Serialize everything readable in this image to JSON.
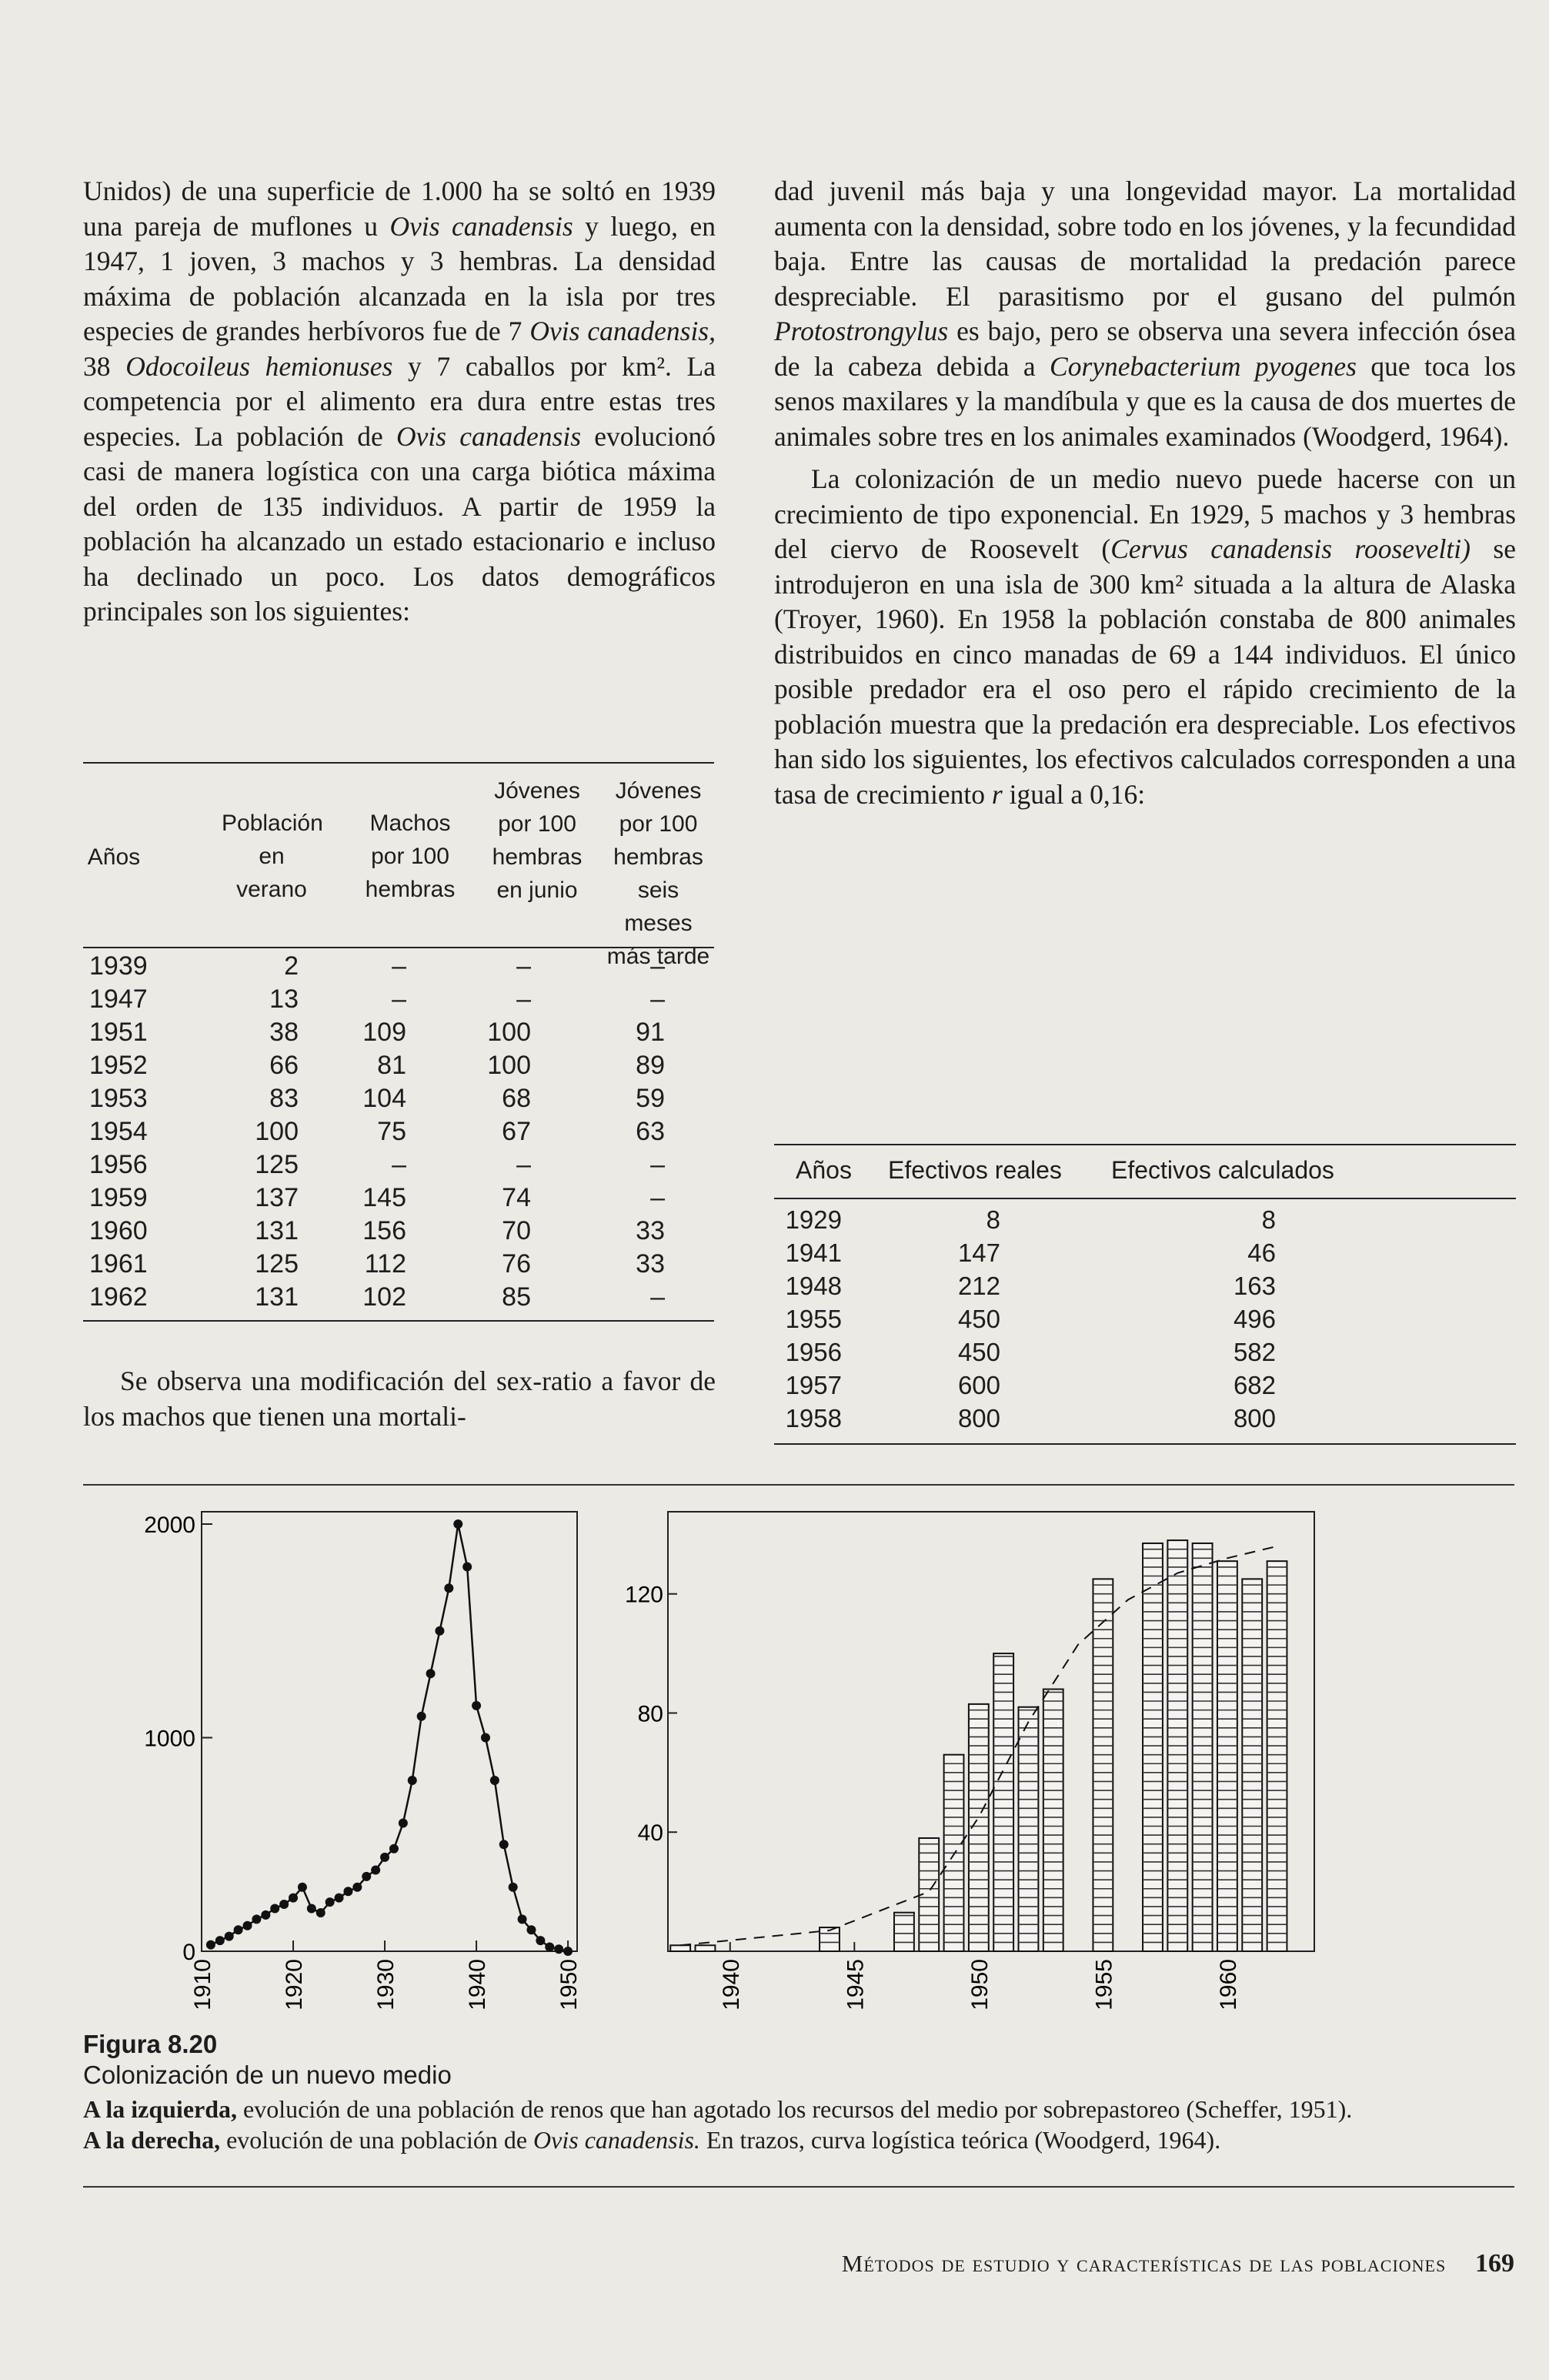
{
  "left_column": [
    {
      "segments": [
        {
          "t": "Unidos) de una superficie de 1.000 ha se soltó en 1939 una pareja de muflones u "
        },
        {
          "t": "Ovis canadensis",
          "i": true
        },
        {
          "t": " y luego, en 1947, 1 joven, 3 machos y 3 hembras. La densidad máxima de población alcanzada en la isla por tres especies de grandes herbívoros fue de 7 "
        },
        {
          "t": "Ovis canadensis,",
          "i": true
        },
        {
          "t": " 38 "
        },
        {
          "t": "Odocoileus hemionuses",
          "i": true
        },
        {
          "t": " y 7 caballos por km²."
        },
        {
          "t": " La competencia por el alimento era dura entre estas tres especies. La población de "
        },
        {
          "t": "Ovis canadensis",
          "i": true
        },
        {
          "t": " evolucionó casi de manera logística con una carga biótica máxima del orden de 135 individuos. A partir de 1959 la población ha alcanzado un estado estacionario e incluso ha declinado un poco. Los datos demográficos principales son los siguientes:"
        }
      ]
    }
  ],
  "table1": {
    "headers": [
      "Años",
      "Población en verano",
      "Machos por 100 hembras",
      "Jóvenes por 100 hembras en junio",
      "Jóvenes por 100 hembras seis meses más tarde"
    ],
    "rows": [
      [
        "1939",
        "2",
        "–",
        "–",
        "–"
      ],
      [
        "1947",
        "13",
        "–",
        "–",
        "–"
      ],
      [
        "1951",
        "38",
        "109",
        "100",
        "91"
      ],
      [
        "1952",
        "66",
        "81",
        "100",
        "89"
      ],
      [
        "1953",
        "83",
        "104",
        "68",
        "59"
      ],
      [
        "1954",
        "100",
        "75",
        "67",
        "63"
      ],
      [
        "1956",
        "125",
        "–",
        "–",
        "–"
      ],
      [
        "1959",
        "137",
        "145",
        "74",
        "–"
      ],
      [
        "1960",
        "131",
        "156",
        "70",
        "33"
      ],
      [
        "1961",
        "125",
        "112",
        "76",
        "33"
      ],
      [
        "1962",
        "131",
        "102",
        "85",
        "–"
      ]
    ]
  },
  "left_after_table": "Se observa una modificación del sex-ratio a favor de los machos que tienen una mortali-",
  "right_column": [
    {
      "segments": [
        {
          "t": "dad juvenil más baja y una longevidad mayor. La mortalidad aumenta con la densidad, sobre todo en los jóvenes, y la fecundidad baja. Entre las causas de mortalidad la predación parece despreciable. El parasitismo por el gusano del pulmón "
        },
        {
          "t": "Protostrongylus",
          "i": true
        },
        {
          "t": " es bajo, pero se observa una severa infección ósea de la cabeza debida a "
        },
        {
          "t": "Corynebacterium pyogenes",
          "i": true
        },
        {
          "t": " que toca los senos maxilares y la mandíbula y que es la causa de dos muertes de animales sobre tres en los animales examinados (Woodgerd, 1964)."
        }
      ]
    },
    {
      "indent": true,
      "segments": [
        {
          "t": "La colonización de un medio nuevo puede hacerse con un crecimiento de tipo exponencial. En 1929, 5 machos y 3 hembras del ciervo de Roosevelt ("
        },
        {
          "t": "Cervus canadensis roosevelti)",
          "i": true
        },
        {
          "t": " se introdujeron en una isla de 300 km² situada a la altura de Alaska (Troyer, 1960). En 1958 la población constaba de 800 animales distribuidos en cinco manadas de 69 a 144 individuos. El único posible predador era el oso pero el rápido crecimiento de la población muestra que la predación era despreciable. Los efectivos han sido los siguientes, los efectivos calculados corresponden a una tasa de crecimiento "
        },
        {
          "t": "r",
          "i": true
        },
        {
          "t": " igual a 0,16:"
        }
      ]
    }
  ],
  "table2": {
    "headers": [
      "Años",
      "Efectivos reales",
      "Efectivos calculados"
    ],
    "rows": [
      [
        "1929",
        "8",
        "8"
      ],
      [
        "1941",
        "147",
        "46"
      ],
      [
        "1948",
        "212",
        "163"
      ],
      [
        "1955",
        "450",
        "496"
      ],
      [
        "1956",
        "450",
        "582"
      ],
      [
        "1957",
        "600",
        "682"
      ],
      [
        "1958",
        "800",
        "800"
      ]
    ]
  },
  "chart_data": [
    {
      "type": "line",
      "x_ticks": [
        "1910",
        "1920",
        "1930",
        "1940",
        "1950"
      ],
      "y_ticks": [
        "0",
        "1000",
        "2000"
      ],
      "xlim": [
        1910,
        1951
      ],
      "ylim": [
        0,
        2000
      ],
      "x": [
        1911,
        1912,
        1913,
        1914,
        1915,
        1916,
        1917,
        1918,
        1919,
        1920,
        1921,
        1922,
        1923,
        1924,
        1925,
        1926,
        1927,
        1928,
        1929,
        1930,
        1931,
        1932,
        1933,
        1934,
        1935,
        1936,
        1937,
        1938,
        1939,
        1940,
        1941,
        1942,
        1943,
        1944,
        1945,
        1946,
        1947,
        1948,
        1949,
        1950
      ],
      "y": [
        30,
        50,
        70,
        100,
        120,
        150,
        170,
        200,
        220,
        250,
        300,
        200,
        180,
        230,
        250,
        280,
        300,
        350,
        380,
        440,
        480,
        600,
        800,
        1100,
        1300,
        1500,
        1700,
        2000,
        1800,
        1150,
        1000,
        800,
        500,
        300,
        150,
        100,
        50,
        20,
        10,
        0
      ]
    },
    {
      "type": "bar",
      "x_ticks": [
        "1940",
        "1945",
        "1950",
        "1955",
        "1960"
      ],
      "y_ticks": [
        "40",
        "80",
        "120"
      ],
      "ylim": [
        0,
        145
      ],
      "x": [
        1938,
        1939,
        1944,
        1947,
        1948,
        1949,
        1950,
        1951,
        1952,
        1953,
        1955,
        1957,
        1958,
        1959,
        1960,
        1961,
        1962
      ],
      "values": [
        2,
        2,
        8,
        13,
        38,
        66,
        83,
        100,
        82,
        88,
        125,
        137,
        138,
        137,
        131,
        125,
        131
      ],
      "logistic_curve": {
        "style": "dashed",
        "x": [
          1938,
          1944,
          1948,
          1950,
          1952,
          1954,
          1956,
          1958,
          1960,
          1962
        ],
        "y": [
          2,
          7,
          20,
          45,
          77,
          103,
          118,
          127,
          132,
          136
        ]
      }
    }
  ],
  "caption": {
    "figure": "Figura 8.20",
    "subtitle": "Colonización de un nuevo medio",
    "left_lead": "A la izquierda,",
    "left_text": " evolución de una población de renos que han agotado los recursos del medio por sobrepastoreo (Scheffer, 1951).",
    "right_lead": "A la derecha,",
    "right_text_1": " evolución de una población de ",
    "right_species": "Ovis canadensis.",
    "right_text_2": " En trazos, curva logística teórica (Woodgerd, 1964)."
  },
  "footer": {
    "running_head": "Métodos de estudio y características de las poblaciones",
    "page": "169"
  }
}
